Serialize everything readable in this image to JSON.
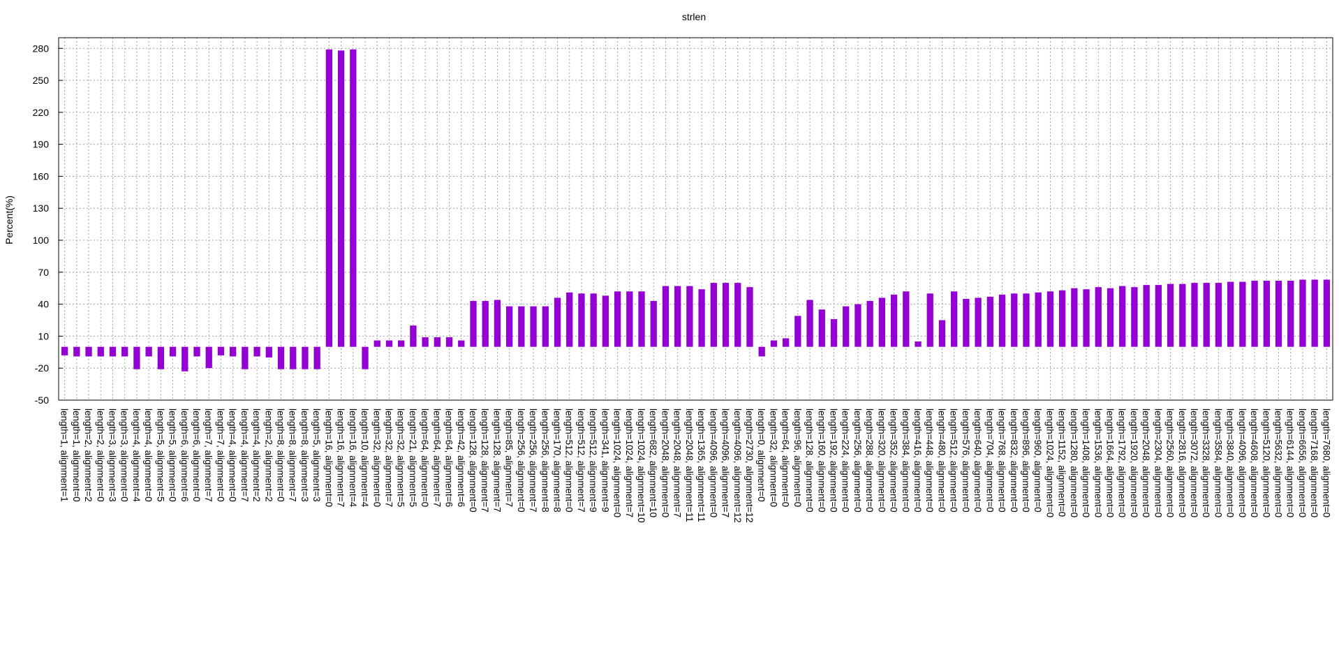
{
  "chart_data": {
    "type": "bar",
    "title": "strlen",
    "y_label": "Percent(%)",
    "categories": [
      "length=1, alignment=1",
      "length=1, alignment=0",
      "length=2, alignment=2",
      "length=2, alignment=0",
      "length=3, alignment=3",
      "length=3, alignment=0",
      "length=4, alignment=4",
      "length=4, alignment=0",
      "length=5, alignment=5",
      "length=5, alignment=0",
      "length=6, alignment=6",
      "length=6, alignment=0",
      "length=7, alignment=7",
      "length=7, alignment=0",
      "length=4, alignment=0",
      "length=4, alignment=7",
      "length=4, alignment=2",
      "length=2, alignment=2",
      "length=8, alignment=0",
      "length=8, alignment=7",
      "length=8, alignment=3",
      "length=5, alignment=3",
      "length=16, alignment=0",
      "length=16, alignment=7",
      "length=16, alignment=4",
      "length=10, alignment=4",
      "length=32, alignment=0",
      "length=32, alignment=7",
      "length=32, alignment=5",
      "length=21, alignment=5",
      "length=64, alignment=0",
      "length=64, alignment=7",
      "length=64, alignment=6",
      "length=42, alignment=6",
      "length=128, alignment=0",
      "length=128, alignment=7",
      "length=128, alignment=7",
      "length=85, alignment=7",
      "length=256, alignment=0",
      "length=256, alignment=7",
      "length=256, alignment=8",
      "length=170, alignment=8",
      "length=512, alignment=0",
      "length=512, alignment=7",
      "length=512, alignment=9",
      "length=341, alignment=9",
      "length=1024, alignment=0",
      "length=1024, alignment=7",
      "length=1024, alignment=10",
      "length=682, alignment=10",
      "length=2048, alignment=0",
      "length=2048, alignment=7",
      "length=2048, alignment=11",
      "length=1365, alignment=11",
      "length=4096, alignment=0",
      "length=4096, alignment=7",
      "length=4096, alignment=12",
      "length=2730, alignment=12",
      "length=0, alignment=0",
      "length=32, alignment=0",
      "length=64, alignment=0",
      "length=96, alignment=0",
      "length=128, alignment=0",
      "length=160, alignment=0",
      "length=192, alignment=0",
      "length=224, alignment=0",
      "length=256, alignment=0",
      "length=288, alignment=0",
      "length=320, alignment=0",
      "length=352, alignment=0",
      "length=384, alignment=0",
      "length=416, alignment=0",
      "length=448, alignment=0",
      "length=480, alignment=0",
      "length=512, alignment=0",
      "length=576, alignment=0",
      "length=640, alignment=0",
      "length=704, alignment=0",
      "length=768, alignment=0",
      "length=832, alignment=0",
      "length=896, alignment=0",
      "length=960, alignment=0",
      "length=1024, alignment=0",
      "length=1152, alignment=0",
      "length=1280, alignment=0",
      "length=1408, alignment=0",
      "length=1536, alignment=0",
      "length=1664, alignment=0",
      "length=1792, alignment=0",
      "length=1920, alignment=0",
      "length=2048, alignment=0",
      "length=2304, alignment=0",
      "length=2560, alignment=0",
      "length=2816, alignment=0",
      "length=3072, alignment=0",
      "length=3328, alignment=0",
      "length=3584, alignment=0",
      "length=3840, alignment=0",
      "length=4096, alignment=0",
      "length=4608, alignment=0",
      "length=5120, alignment=0",
      "length=5632, alignment=0",
      "length=6144, alignment=0",
      "length=6656, alignment=0",
      "length=7168, alignment=0",
      "length=7680, alignment=0"
    ],
    "values": [
      -8,
      -9,
      -9,
      -9,
      -9,
      -9,
      -21,
      -9,
      -21,
      -9,
      -23,
      -9,
      -20,
      -8,
      -9,
      -21,
      -9,
      -10,
      -21,
      -21,
      -21,
      -21,
      279,
      278,
      279,
      -21,
      6,
      6,
      6,
      20,
      9,
      9,
      9,
      6,
      43,
      43,
      44,
      38,
      38,
      38,
      38,
      46,
      51,
      50,
      50,
      48,
      52,
      52,
      52,
      43,
      57,
      57,
      57,
      54,
      60,
      60,
      60,
      56,
      -9,
      6,
      8,
      29,
      44,
      35,
      26,
      38,
      40,
      43,
      46,
      49,
      52,
      5,
      50,
      25,
      52,
      45,
      46,
      47,
      49,
      50,
      50,
      51,
      52,
      53,
      55,
      54,
      56,
      55,
      57,
      56,
      58,
      58,
      59,
      59,
      60,
      60,
      60,
      61,
      61,
      62,
      62,
      62,
      62,
      63,
      63,
      63
    ],
    "color": "#9400d3",
    "ylim": [
      -50,
      290
    ],
    "yticks": [
      -50,
      -20,
      10,
      40,
      70,
      100,
      130,
      160,
      190,
      220,
      250,
      280
    ],
    "grid": true
  }
}
